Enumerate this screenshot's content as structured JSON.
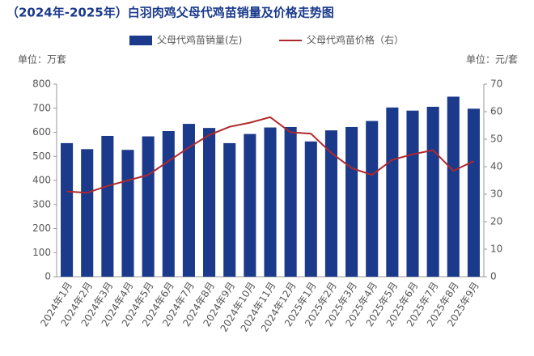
{
  "chart_data": {
    "type": "bar",
    "title": "（2024年-2025年）白羽肉鸡父母代鸡苗销量及价格走势图",
    "y_label": "单位：万套",
    "y2_label": "单位：元/套",
    "categories": [
      "2024年1月",
      "2024年2月",
      "2024年3月",
      "2024年4月",
      "2024年5月",
      "2024年6月",
      "2024年7月",
      "2024年8月",
      "2024年9月",
      "2024年10月",
      "2024年11月",
      "2024年12月",
      "2025年1月",
      "2025年2月",
      "2025年3月",
      "2025年4月",
      "2025年5月",
      "2025年6月",
      "2025年7月",
      "2025年8月",
      "2025年9月"
    ],
    "series": [
      {
        "name": "父母代鸡苗销量(左)",
        "type": "bar",
        "color": "#1b3a8c",
        "values": [
          555,
          530,
          585,
          527,
          583,
          605,
          635,
          618,
          555,
          593,
          620,
          622,
          562,
          608,
          622,
          647,
          703,
          690,
          706,
          748,
          698
        ]
      },
      {
        "name": "父母代鸡苗价格（右）",
        "type": "line",
        "axis": "y2",
        "color": "#b0282c",
        "values": [
          31,
          30.5,
          33,
          35,
          37,
          42,
          47,
          51.5,
          54.5,
          56,
          58,
          52.5,
          52,
          45,
          39.5,
          37,
          42.5,
          44.5,
          46,
          38.5,
          42
        ]
      }
    ],
    "ylim": [
      0,
      800
    ],
    "yticks": [
      0,
      100,
      200,
      300,
      400,
      500,
      600,
      700,
      800
    ],
    "y2lim": [
      0,
      70
    ],
    "y2ticks": [
      0,
      10,
      20,
      30,
      40,
      50,
      60,
      70
    ],
    "legend": "top"
  }
}
